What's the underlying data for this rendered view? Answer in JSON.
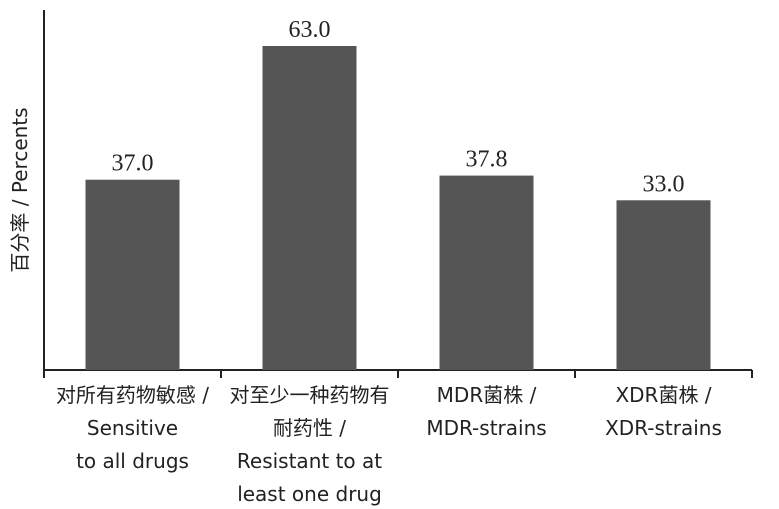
{
  "chart_data": {
    "type": "bar",
    "title": "",
    "xlabel": "",
    "ylabel": "百分率 / Percents",
    "ylim": [
      0,
      70
    ],
    "grid": false,
    "bar_color": "#555555",
    "categories": [
      [
        "对所有药物敏感 /",
        "Sensitive",
        "to all drugs"
      ],
      [
        "对至少一种药物有",
        "耐药性 /",
        "Resistant to at",
        "least one drug"
      ],
      [
        "MDR菌株 /",
        "MDR-strains"
      ],
      [
        "XDR菌株 /",
        "XDR-strains"
      ]
    ],
    "values": [
      37.0,
      63.0,
      37.8,
      33.0
    ],
    "value_labels": [
      "37.0",
      "63.0",
      "37.8",
      "33.0"
    ]
  }
}
